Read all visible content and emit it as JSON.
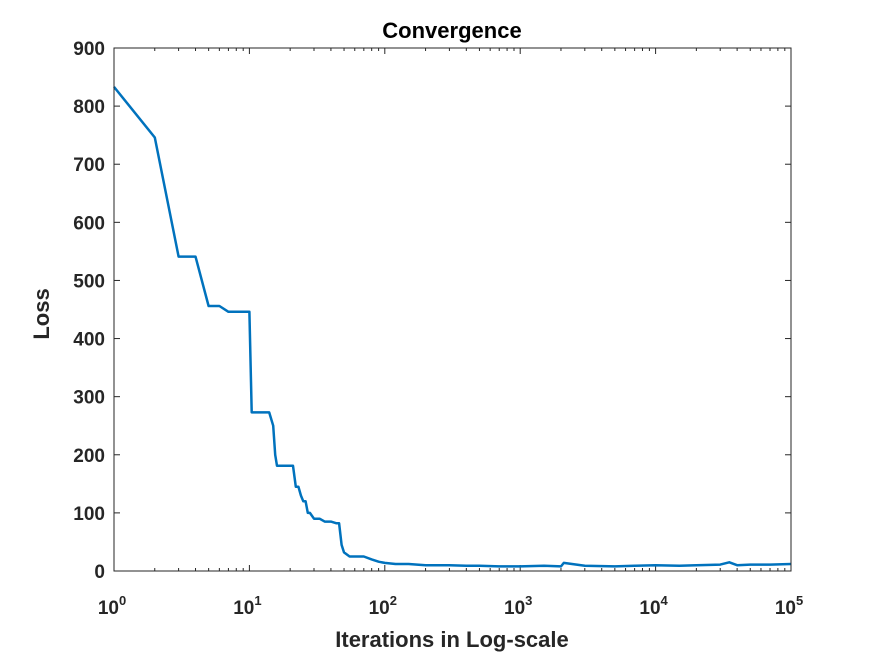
{
  "chart_data": {
    "type": "line",
    "title": "Convergence",
    "xlabel": "Iterations in Log-scale",
    "ylabel": "Loss",
    "xscale": "log",
    "xlim": [
      1,
      100000
    ],
    "ylim": [
      0,
      900
    ],
    "grid": false,
    "legend": "none",
    "x_ticks": [
      {
        "base": "10",
        "exp": "0",
        "value": 1
      },
      {
        "base": "10",
        "exp": "1",
        "value": 10
      },
      {
        "base": "10",
        "exp": "2",
        "value": 100
      },
      {
        "base": "10",
        "exp": "3",
        "value": 1000
      },
      {
        "base": "10",
        "exp": "4",
        "value": 10000
      },
      {
        "base": "10",
        "exp": "5",
        "value": 100000
      }
    ],
    "y_ticks": [
      "0",
      "100",
      "200",
      "300",
      "400",
      "500",
      "600",
      "700",
      "800",
      "900"
    ],
    "series": [
      {
        "color": "#0072BD",
        "x": [
          1,
          2,
          3,
          4,
          5,
          6,
          7,
          8,
          9,
          10,
          10.4,
          11,
          12,
          14,
          15,
          15.5,
          16,
          20,
          21,
          22,
          23,
          24,
          25,
          26,
          27,
          28,
          30,
          33,
          36,
          40,
          44,
          46,
          48,
          50,
          55,
          60,
          70,
          80,
          90,
          100,
          120,
          150,
          200,
          300,
          400,
          500,
          700,
          1000,
          1500,
          2000,
          2100,
          3000,
          5000,
          7000,
          10000,
          15000,
          20000,
          30000,
          35000,
          40000,
          50000,
          70000,
          100000
        ],
        "values": [
          833,
          746,
          541,
          541,
          456,
          456,
          446,
          446,
          446,
          446,
          273,
          273,
          273,
          273,
          250,
          200,
          181,
          181,
          181,
          145,
          145,
          130,
          120,
          120,
          100,
          100,
          90,
          90,
          85,
          85,
          82,
          82,
          45,
          32,
          25,
          25,
          25,
          20,
          16,
          14,
          12,
          12,
          10,
          10,
          9,
          9,
          8,
          8,
          9,
          8,
          14,
          9,
          8,
          9,
          10,
          9,
          10,
          11,
          15,
          10,
          11,
          11,
          12
        ]
      }
    ]
  }
}
